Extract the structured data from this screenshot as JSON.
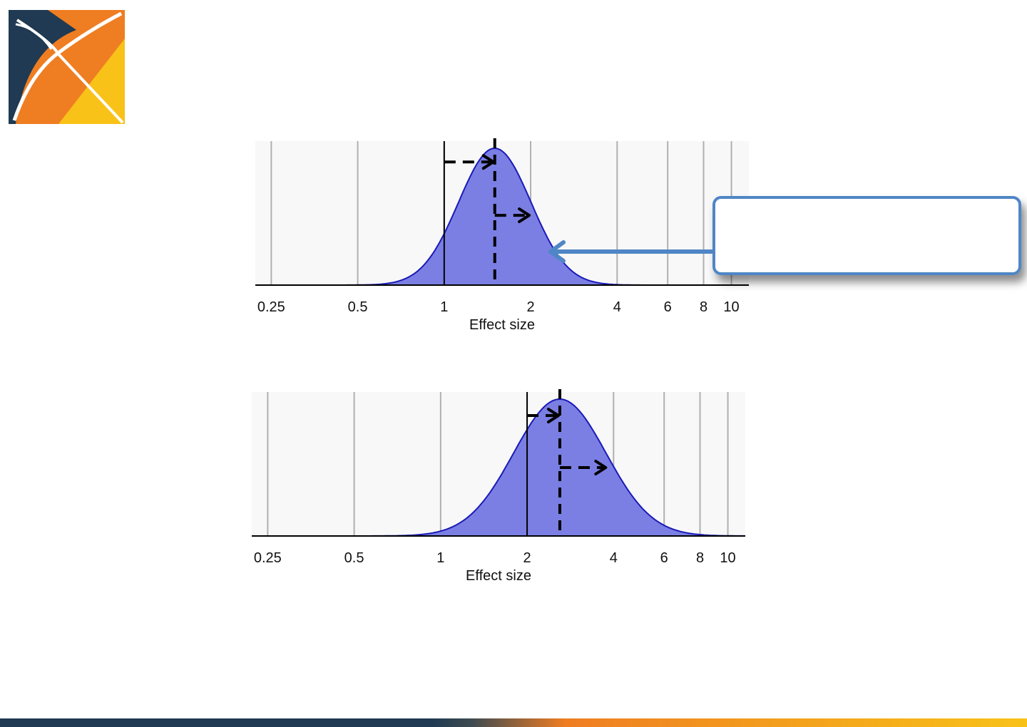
{
  "colors": {
    "logo_navy": "#1f3a52",
    "logo_orange": "#ef7d22",
    "logo_yellow": "#f8c218",
    "distribution_fill": "#7b7fe3",
    "distribution_stroke": "#1a1ab8",
    "callout_border": "#4f86c6",
    "plot_background": "#f8f8f8"
  },
  "logo": {
    "icon": "x-logo-icon"
  },
  "callout": {
    "text": ""
  },
  "chart_data": [
    {
      "type": "area",
      "title": "",
      "xlabel": "Effect size",
      "ylabel": "",
      "x_scale": "log",
      "xlim": [
        0.22,
        11.5
      ],
      "xticks": [
        0.25,
        0.5,
        1,
        2,
        4,
        6,
        8,
        10
      ],
      "xtick_labels": [
        "0.25",
        "0.5",
        "1",
        "2",
        "4",
        "6",
        "8",
        "10"
      ],
      "grid": true,
      "reference_line": 1,
      "distribution": {
        "shape": "log-normal",
        "mode": 1.5,
        "log_sd": 0.29
      },
      "mean_marker": 1.5,
      "arrows": [
        {
          "from": 1,
          "to": 1.5,
          "level": 0.9
        },
        {
          "from": 1.5,
          "to": 2.0,
          "level": 0.51
        }
      ]
    },
    {
      "type": "area",
      "title": "",
      "xlabel": "Effect size",
      "ylabel": "",
      "x_scale": "log",
      "xlim": [
        0.22,
        11.5
      ],
      "xticks": [
        0.25,
        0.5,
        1,
        2,
        4,
        6,
        8,
        10
      ],
      "xtick_labels": [
        "0.25",
        "0.5",
        "1",
        "2",
        "4",
        "6",
        "8",
        "10"
      ],
      "grid": true,
      "reference_line": 2,
      "distribution": {
        "shape": "log-normal",
        "mode": 2.6,
        "log_sd": 0.37
      },
      "mean_marker": 2.6,
      "arrows": [
        {
          "from": 2,
          "to": 2.6,
          "level": 0.88
        },
        {
          "from": 2.6,
          "to": 3.8,
          "level": 0.5
        }
      ]
    }
  ]
}
